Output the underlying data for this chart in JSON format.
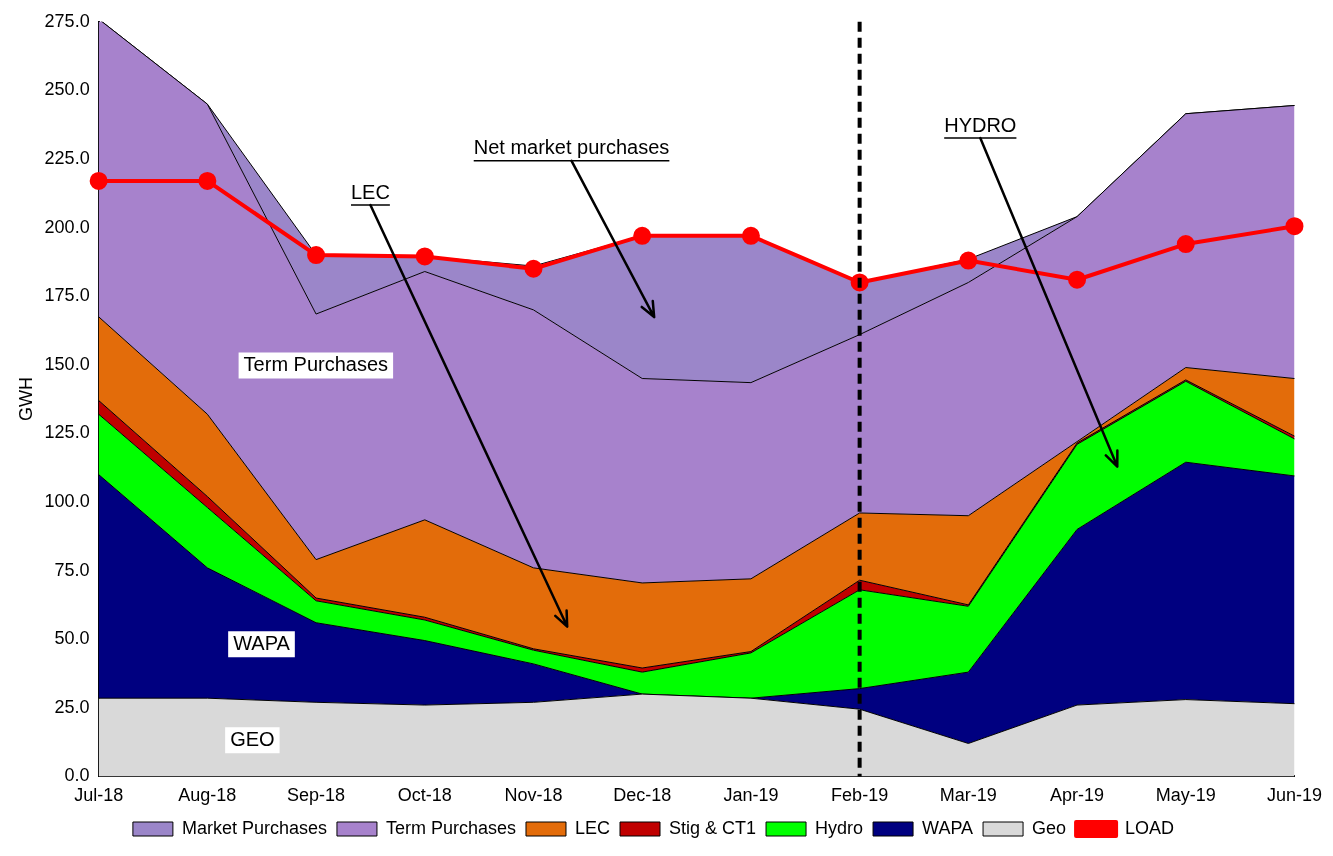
{
  "chart_data": {
    "type": "area",
    "categories": [
      "Jul-18",
      "Aug-18",
      "Sep-18",
      "Oct-18",
      "Nov-18",
      "Dec-18",
      "Jan-19",
      "Feb-19",
      "Mar-19",
      "Apr-19",
      "May-19",
      "Jun-19"
    ],
    "stacked": true,
    "ylabel": "GWH",
    "ylim": [
      0,
      275
    ],
    "yticks": [
      {
        "value": 0,
        "label": "0.0"
      },
      {
        "value": 25,
        "label": "25.0"
      },
      {
        "value": 50,
        "label": "50.0"
      },
      {
        "value": 75,
        "label": "75.0"
      },
      {
        "value": 100,
        "label": "100.0"
      },
      {
        "value": 125,
        "label": "125.0"
      },
      {
        "value": 150,
        "label": "150.0"
      },
      {
        "value": 175,
        "label": "175.0"
      },
      {
        "value": 200,
        "label": "200.0"
      },
      {
        "value": 225,
        "label": "225.0"
      },
      {
        "value": 250,
        "label": "250.0"
      },
      {
        "value": 275,
        "label": "275.0"
      }
    ],
    "grid": false,
    "legend": "bottom",
    "series": [
      {
        "name": "Geo",
        "color": "#d9d9d9",
        "values": [
          28.5,
          28.5,
          27,
          26,
          27,
          30,
          28.5,
          24.5,
          12,
          26,
          28,
          26.5
        ]
      },
      {
        "name": "WAPA",
        "color": "#000080",
        "values": [
          81.5,
          47.5,
          29,
          23.5,
          14,
          0,
          0,
          7.5,
          26,
          64,
          86.5,
          83
        ]
      },
      {
        "name": "Hydro",
        "color": "#00ff00",
        "values": [
          22,
          22,
          8,
          7.5,
          5,
          8,
          16.5,
          36,
          24,
          31,
          29.5,
          13.5
        ]
      },
      {
        "name": "Stig & CT1",
        "color": "#c00000",
        "values": [
          5,
          4,
          1,
          1,
          0.5,
          1.5,
          0.5,
          3.5,
          0.5,
          0.5,
          0.5,
          1
        ]
      },
      {
        "name": "LEC",
        "color": "#e36c0a",
        "values": [
          30.5,
          30,
          14,
          35.5,
          29.5,
          31,
          26.5,
          24.5,
          32.5,
          0.5,
          4.5,
          21
        ]
      },
      {
        "name": "Term Purchases",
        "color": "#a782cc",
        "values": [
          108.5,
          113,
          89.5,
          90.5,
          94,
          74.5,
          71.5,
          65,
          85,
          82,
          92.5,
          99.5
        ]
      },
      {
        "name": "Market Purchases",
        "color": "#9b86c9",
        "values": [
          0,
          0,
          21.5,
          5.5,
          16,
          52,
          53.5,
          19,
          8.5,
          0,
          0,
          0
        ]
      },
      {
        "name": "LOAD",
        "type": "line",
        "color": "#ff0000",
        "marker": "circle",
        "values": [
          217,
          217,
          190,
          189.5,
          185,
          197,
          197,
          180,
          188,
          181,
          194,
          200.5
        ]
      }
    ],
    "ref_lines": [
      {
        "axis": "x",
        "value": "Feb-19",
        "color": "#000000",
        "line_style": "dashed"
      }
    ],
    "annotations": [
      "Net market purchases",
      "LEC",
      "HYDRO",
      "Term Purchases",
      "WAPA",
      "GEO"
    ]
  }
}
